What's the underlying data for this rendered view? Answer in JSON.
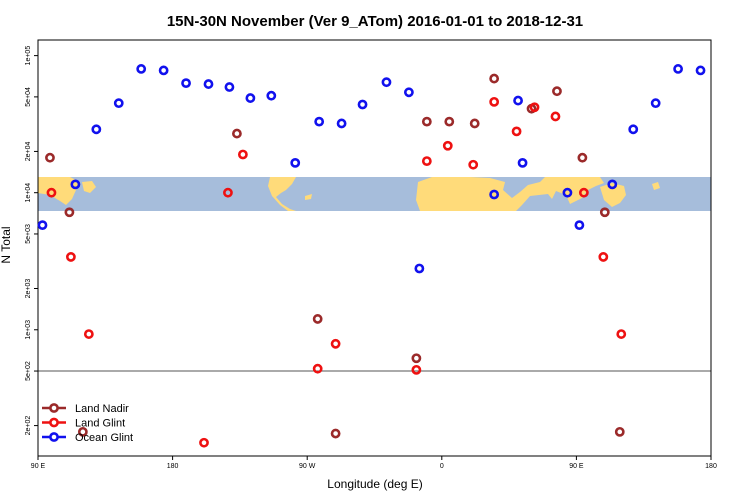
{
  "chart_data": {
    "type": "scatter",
    "title": "15N-30N November (Ver 9_ATom)   2016-01-01 to 2018-12-31",
    "xlabel": "Longitude (deg E)",
    "ylabel": "N Total",
    "x_ticks": [
      {
        "value": 90,
        "label": "90 E"
      },
      {
        "value": 180,
        "label": "180"
      },
      {
        "value": 270,
        "label": "90 W"
      },
      {
        "value": 360,
        "label": "0"
      },
      {
        "value": 450,
        "label": "90 E"
      },
      {
        "value": 540,
        "label": "180"
      }
    ],
    "y_ticks": [
      {
        "value": 200,
        "label": "2e+02"
      },
      {
        "value": 500,
        "label": "5e+02"
      },
      {
        "value": 1000,
        "label": "1e+03"
      },
      {
        "value": 2000,
        "label": "2e+03"
      },
      {
        "value": 5000,
        "label": "5e+03"
      },
      {
        "value": 10000,
        "label": "1e+04"
      },
      {
        "value": 20000,
        "label": "2e+04"
      },
      {
        "value": 50000,
        "label": "5e+04"
      },
      {
        "value": 100000,
        "label": "1e+05"
      }
    ],
    "xlim": [
      90,
      540
    ],
    "ylim": [
      120,
      130000
    ],
    "y_scale": "log",
    "reference_line": 500,
    "background": "world map strip (15N-30N) centered on the 10000 level",
    "legend_position": "bottom-left",
    "series": [
      {
        "name": "Land Nadir",
        "color": "#9B2A2A",
        "points": [
          [
            98,
            18000
          ],
          [
            111,
            7200
          ],
          [
            120,
            180
          ],
          [
            223,
            27000
          ],
          [
            277,
            1200
          ],
          [
            289,
            175
          ],
          [
            343,
            620
          ],
          [
            350,
            33000
          ],
          [
            365,
            33000
          ],
          [
            382,
            32000
          ],
          [
            395,
            68000
          ],
          [
            420,
            41000
          ],
          [
            437,
            55000
          ],
          [
            454,
            18000
          ],
          [
            469,
            7200
          ],
          [
            479,
            180
          ]
        ]
      },
      {
        "name": "Land Glint",
        "color": "#EE1111",
        "points": [
          [
            99,
            10000
          ],
          [
            112,
            3400
          ],
          [
            124,
            930
          ],
          [
            201,
            150
          ],
          [
            217,
            10000
          ],
          [
            227,
            19000
          ],
          [
            277,
            520
          ],
          [
            289,
            790
          ],
          [
            343,
            510
          ],
          [
            350,
            17000
          ],
          [
            364,
            22000
          ],
          [
            381,
            16000
          ],
          [
            395,
            46000
          ],
          [
            410,
            28000
          ],
          [
            422,
            42000
          ],
          [
            436,
            36000
          ],
          [
            455,
            10000
          ],
          [
            468,
            3400
          ],
          [
            480,
            930
          ]
        ]
      },
      {
        "name": "Ocean Glint",
        "color": "#1111EE",
        "points": [
          [
            93,
            5800
          ],
          [
            115,
            11500
          ],
          [
            129,
            29000
          ],
          [
            144,
            45000
          ],
          [
            159,
            80000
          ],
          [
            174,
            78000
          ],
          [
            189,
            63000
          ],
          [
            204,
            62000
          ],
          [
            218,
            59000
          ],
          [
            232,
            49000
          ],
          [
            246,
            51000
          ],
          [
            262,
            16500
          ],
          [
            278,
            33000
          ],
          [
            293,
            32000
          ],
          [
            307,
            44000
          ],
          [
            323,
            64000
          ],
          [
            338,
            54000
          ],
          [
            345,
            2800
          ],
          [
            395,
            9700
          ],
          [
            411,
            47000
          ],
          [
            414,
            16500
          ],
          [
            444,
            10000
          ],
          [
            452,
            5800
          ],
          [
            474,
            11500
          ],
          [
            488,
            29000
          ],
          [
            503,
            45000
          ],
          [
            518,
            80000
          ],
          [
            533,
            78000
          ]
        ]
      }
    ]
  }
}
